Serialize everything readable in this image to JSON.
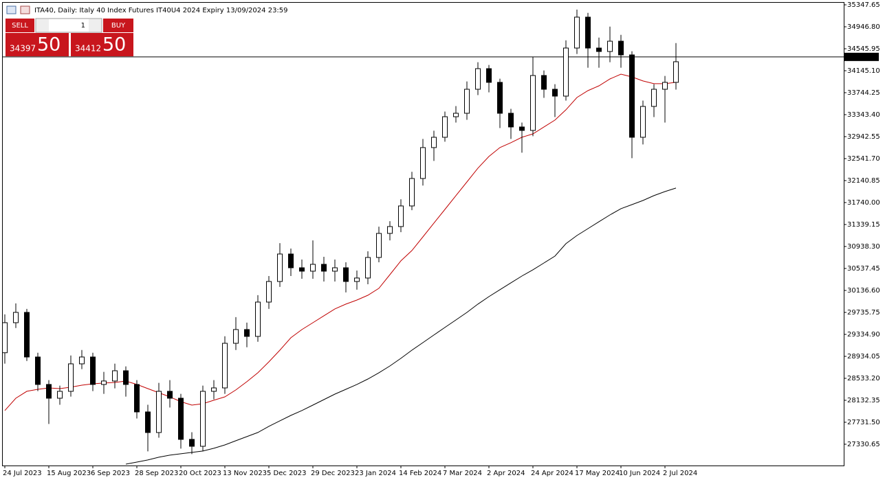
{
  "chart_data": {
    "type": "candlestick",
    "title": "ITA40, Daily:  Italy 40 Index Futures IT40U4 2024 Expiry 13/09/2024 23:59",
    "categories": [
      "24 Jul 2023",
      null,
      null,
      null,
      "15 Aug 2023",
      null,
      null,
      null,
      "6 Sep 2023",
      null,
      null,
      null,
      "28 Sep 2023",
      null,
      null,
      null,
      "20 Oct 2023",
      null,
      null,
      null,
      "13 Nov 2023",
      null,
      null,
      null,
      "5 Dec 2023",
      null,
      null,
      null,
      "29 Dec 2023",
      null,
      null,
      null,
      "23 Jan 2024",
      null,
      null,
      null,
      "14 Feb 2024",
      null,
      null,
      null,
      "7 Mar 2024",
      null,
      null,
      null,
      "2 Apr 2024",
      null,
      null,
      null,
      "24 Apr 2024",
      null,
      null,
      null,
      "17 May 2024",
      null,
      null,
      null,
      "10 Jun 2024",
      null,
      null,
      null,
      "2 Jul 2024",
      null
    ],
    "open": [
      29000,
      29548,
      29736,
      28922,
      28421,
      28170,
      28296,
      28797,
      28922,
      28421,
      28484,
      28671,
      28421,
      27920,
      27544,
      28296,
      28170,
      27419,
      27293,
      28296,
      28358,
      29172,
      29423,
      29298,
      29924,
      30300,
      30801,
      30550,
      30488,
      30613,
      30488,
      30550,
      30300,
      30363,
      30738,
      31177,
      31302,
      31678,
      32179,
      32743,
      32931,
      33306,
      33369,
      33807,
      34183,
      33933,
      33369,
      33119,
      33056,
      34058,
      33807,
      33682,
      34559,
      35123,
      34559,
      34496,
      34684,
      34434,
      32931,
      33494,
      33807,
      33933
    ],
    "high": [
      29700,
      29900,
      29800,
      29000,
      28500,
      28400,
      28950,
      29050,
      29000,
      28650,
      28800,
      28750,
      28500,
      28050,
      28450,
      28500,
      28250,
      27550,
      28400,
      28500,
      29300,
      29650,
      29550,
      30050,
      30400,
      31000,
      30900,
      30700,
      31050,
      30750,
      30700,
      30650,
      30500,
      30850,
      31300,
      31400,
      31800,
      32300,
      32900,
      33050,
      33400,
      33500,
      33950,
      34300,
      34250,
      34000,
      33450,
      33200,
      34400,
      34150,
      33900,
      34700,
      35260,
      35200,
      34750,
      34950,
      34800,
      34500,
      33600,
      33900,
      34050,
      34650
    ],
    "low": [
      28800,
      29450,
      28850,
      28300,
      27700,
      28050,
      28200,
      28700,
      28300,
      28250,
      28350,
      28200,
      27800,
      27200,
      27450,
      28000,
      27250,
      27150,
      27200,
      28150,
      28250,
      29050,
      29100,
      29200,
      29800,
      30200,
      30400,
      30350,
      30350,
      30300,
      30300,
      30100,
      30150,
      30250,
      30650,
      31050,
      31200,
      31600,
      32050,
      32500,
      32850,
      33200,
      33250,
      33700,
      33750,
      33100,
      32900,
      32650,
      32950,
      33650,
      33300,
      33600,
      34450,
      34200,
      34200,
      34300,
      34200,
      32550,
      32800,
      33300,
      33200,
      33800
    ],
    "close": [
      29548,
      29736,
      28922,
      28421,
      28170,
      28296,
      28797,
      28922,
      28421,
      28484,
      28671,
      28421,
      27920,
      27544,
      28296,
      28170,
      27419,
      27293,
      28296,
      28358,
      29172,
      29423,
      29298,
      29924,
      30300,
      30801,
      30550,
      30488,
      30613,
      30488,
      30550,
      30300,
      30363,
      30738,
      31177,
      31302,
      31678,
      32179,
      32743,
      32931,
      33306,
      33369,
      33807,
      34183,
      33933,
      33369,
      33119,
      33056,
      34058,
      33807,
      33682,
      34559,
      35123,
      34559,
      34496,
      34684,
      34434,
      32931,
      33494,
      33807,
      33933,
      34309
    ],
    "up_color": "#ffffff",
    "down_color": "#000000",
    "moving_averages": [
      {
        "color": "#c00000",
        "values": [
          27945,
          28170,
          28296,
          28333,
          28358,
          28345,
          28371,
          28408,
          28433,
          28446,
          28458,
          28483,
          28421,
          28345,
          28270,
          28195,
          28107,
          28045,
          28070,
          28133,
          28195,
          28321,
          28471,
          28634,
          28834,
          29047,
          29273,
          29423,
          29548,
          29674,
          29799,
          29887,
          29961,
          30049,
          30175,
          30425,
          30676,
          30864,
          31114,
          31365,
          31615,
          31866,
          32116,
          32367,
          32580,
          32743,
          32832,
          32931,
          32993,
          33119,
          33244,
          33432,
          33657,
          33782,
          33870,
          33995,
          34083,
          34033,
          33958,
          33908,
          33908,
          33933
        ]
      },
      {
        "color": "#000000",
        "values": [
          null,
          null,
          null,
          null,
          null,
          null,
          null,
          null,
          null,
          null,
          null,
          26967,
          27005,
          27043,
          27093,
          27131,
          27156,
          27181,
          27206,
          27256,
          27318,
          27394,
          27469,
          27544,
          27657,
          27757,
          27857,
          27945,
          28045,
          28145,
          28245,
          28333,
          28421,
          28521,
          28634,
          28759,
          28897,
          29047,
          29185,
          29323,
          29461,
          29598,
          29736,
          29887,
          30024,
          30150,
          30275,
          30400,
          30513,
          30638,
          30763,
          30989,
          31139,
          31264,
          31390,
          31515,
          31628,
          31703,
          31778,
          31866,
          31941,
          32004
        ]
      }
    ],
    "price_line": {
      "value": 34397.5,
      "label": "34397.50"
    },
    "ylim": [
      26942,
      35398
    ],
    "yticks": [
      35347.65,
      {
        "value": 34946.8,
        "label": "34946.80"
      },
      34545.95,
      {
        "value": 34145.1,
        "label": "34145.10"
      },
      33744.25,
      {
        "value": 33343.4,
        "label": "33343.40"
      },
      32942.55,
      {
        "value": 32541.7,
        "label": "32541.70"
      },
      32140.85,
      {
        "value": 31740,
        "label": "31740.00"
      },
      31339.15,
      {
        "value": 30938.3,
        "label": "30938.30"
      },
      30537.45,
      {
        "value": 30136.6,
        "label": "30136.60"
      },
      29735.75,
      {
        "value": 29334.9,
        "label": "29334.90"
      },
      28934.05,
      {
        "value": 28533.2,
        "label": "28533.20"
      },
      28132.35,
      {
        "value": 27731.5,
        "label": "27731.50"
      },
      27330.65
    ],
    "trade_panel": {
      "sell": "SELL",
      "buy": "BUY",
      "volume": 1,
      "bid_main": "34397",
      "bid_frac": "50",
      "ask_main": "34412",
      "ask_frac": "50"
    }
  }
}
